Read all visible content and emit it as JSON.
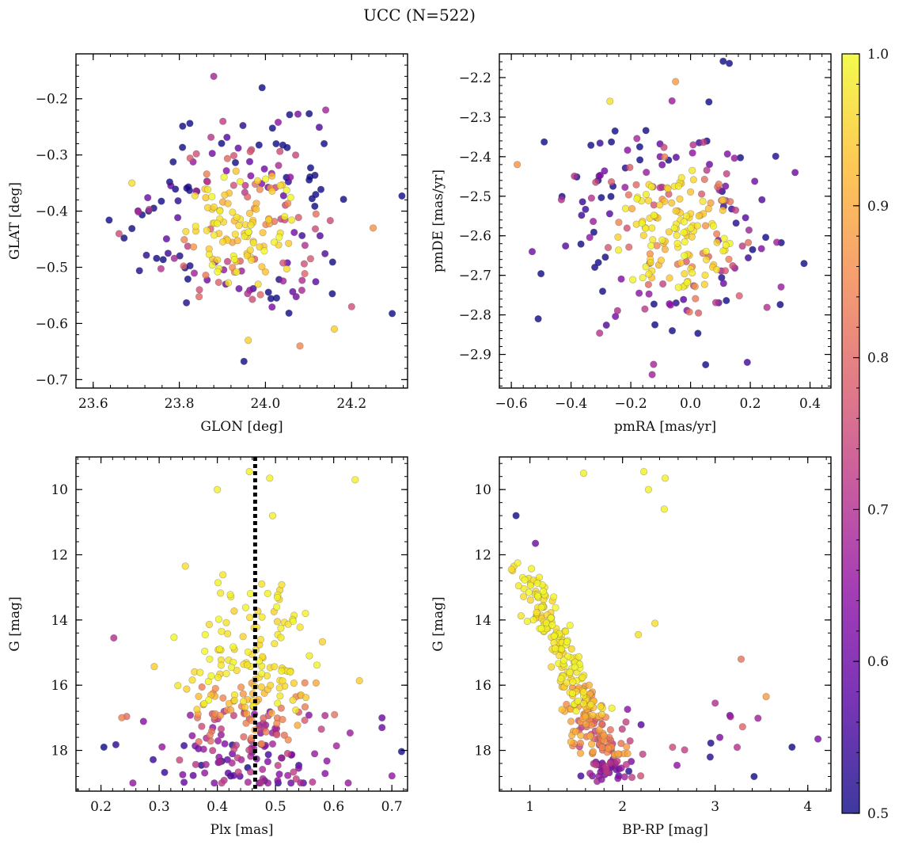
{
  "figure": {
    "title": "UCC (N=522)"
  },
  "colorbar": {
    "min": 0.5,
    "max": 1.0,
    "ticks": [
      "0.5",
      "0.6",
      "0.7",
      "0.8",
      "0.9",
      "1.0"
    ],
    "colormap": "plasma",
    "alpha": 0.8
  },
  "chart_data": [
    {
      "type": "scatter",
      "panel": "top-left",
      "xlabel": "GLON [deg]",
      "ylabel": "GLAT [deg]",
      "xlim": [
        23.56,
        24.33
      ],
      "ylim": [
        -0.715,
        -0.12
      ],
      "xticks": [
        "23.6",
        "23.8",
        "24.0",
        "24.2"
      ],
      "yticks": [
        "-0.7",
        "-0.6",
        "-0.5",
        "-0.4",
        "-0.3",
        "-0.2"
      ],
      "x_center": 23.95,
      "x_std": 0.11,
      "y_center": -0.43,
      "y_std": 0.08,
      "n": 260,
      "seed": 11,
      "extra_points": [
        [
          23.66,
          -0.44,
          0.75
        ],
        [
          24.25,
          -0.43,
          0.87
        ],
        [
          23.88,
          -0.16,
          0.68
        ],
        [
          24.14,
          -0.22,
          0.68
        ],
        [
          24.08,
          -0.64,
          0.85
        ],
        [
          23.96,
          -0.63,
          0.95
        ],
        [
          24.16,
          -0.61,
          0.95
        ],
        [
          23.69,
          -0.35,
          0.97
        ],
        [
          24.2,
          -0.57,
          0.76
        ]
      ]
    },
    {
      "type": "scatter",
      "panel": "top-right",
      "xlabel": "pmRA [mas/yr]",
      "ylabel": "pmDE [mas/yr]",
      "xlim": [
        -0.64,
        0.47
      ],
      "ylim": [
        -2.985,
        -2.14
      ],
      "xticks": [
        "-0.6",
        "-0.4",
        "-0.2",
        "0.0",
        "0.2",
        "0.4"
      ],
      "yticks": [
        "-2.9",
        "-2.8",
        "-2.7",
        "-2.6",
        "-2.5",
        "-2.4",
        "-2.3",
        "-2.2"
      ],
      "x_center": -0.06,
      "x_std": 0.15,
      "y_center": -2.59,
      "y_std": 0.13,
      "n": 270,
      "seed": 23,
      "extra_points": [
        [
          -0.58,
          -2.42,
          0.87
        ],
        [
          -0.51,
          -2.81,
          0.5
        ],
        [
          0.38,
          -2.67,
          0.5
        ],
        [
          0.35,
          -2.44,
          0.6
        ],
        [
          0.19,
          -2.92,
          0.55
        ],
        [
          -0.05,
          -2.21,
          0.88
        ],
        [
          -0.27,
          -2.26,
          0.97
        ],
        [
          -0.53,
          -2.64,
          0.6
        ]
      ]
    },
    {
      "type": "scatter",
      "panel": "bottom-left",
      "xlabel": "Plx [mas]",
      "ylabel": "G [mag]",
      "xlim": [
        0.157,
        0.727
      ],
      "ylim": [
        19.25,
        9.0
      ],
      "y_inverted": true,
      "xticks": [
        "0.2",
        "0.3",
        "0.4",
        "0.5",
        "0.6",
        "0.7"
      ],
      "yticks": [
        "10",
        "12",
        "14",
        "16",
        "18"
      ],
      "vline": {
        "x": 0.465,
        "style": "dotted",
        "color": "#000000"
      },
      "x_center": 0.46,
      "x_std": 0.075,
      "n": 300,
      "seed": 37,
      "extra_points": [
        [
          0.205,
          17.9,
          0.5
        ],
        [
          0.222,
          14.55,
          0.7
        ],
        [
          0.637,
          9.7,
          0.99
        ],
        [
          0.4,
          10.0,
          0.99
        ],
        [
          0.455,
          9.45,
          0.99
        ],
        [
          0.495,
          10.8,
          0.99
        ],
        [
          0.683,
          17.0,
          0.6
        ],
        [
          0.683,
          17.3,
          0.6
        ],
        [
          0.345,
          12.35,
          0.97
        ],
        [
          0.49,
          9.65,
          0.99
        ]
      ]
    },
    {
      "type": "scatter",
      "panel": "bottom-right",
      "xlabel": "BP-RP [mag]",
      "ylabel": "G [mag]",
      "xlim": [
        0.67,
        4.25
      ],
      "ylim": [
        19.25,
        9.0
      ],
      "y_inverted": true,
      "xticks": [
        "1",
        "2",
        "3",
        "4"
      ],
      "yticks": [
        "10",
        "12",
        "14",
        "16",
        "18"
      ],
      "n": 320,
      "seed": 53,
      "extra_points": [
        [
          0.85,
          10.8,
          0.5
        ],
        [
          1.58,
          9.5,
          0.99
        ],
        [
          2.23,
          9.45,
          0.99
        ],
        [
          2.28,
          10.0,
          0.99
        ],
        [
          2.46,
          9.65,
          0.99
        ],
        [
          2.45,
          10.6,
          0.99
        ],
        [
          1.06,
          11.65,
          0.6
        ],
        [
          2.35,
          14.1,
          0.97
        ],
        [
          3.28,
          15.2,
          0.82
        ],
        [
          4.11,
          17.65,
          0.62
        ],
        [
          3.83,
          17.9,
          0.5
        ],
        [
          3.42,
          18.8,
          0.5
        ],
        [
          3.55,
          16.35,
          0.88
        ],
        [
          2.17,
          14.45,
          0.97
        ],
        [
          3.0,
          16.55,
          0.7
        ],
        [
          3.05,
          17.6,
          0.62
        ]
      ]
    }
  ]
}
